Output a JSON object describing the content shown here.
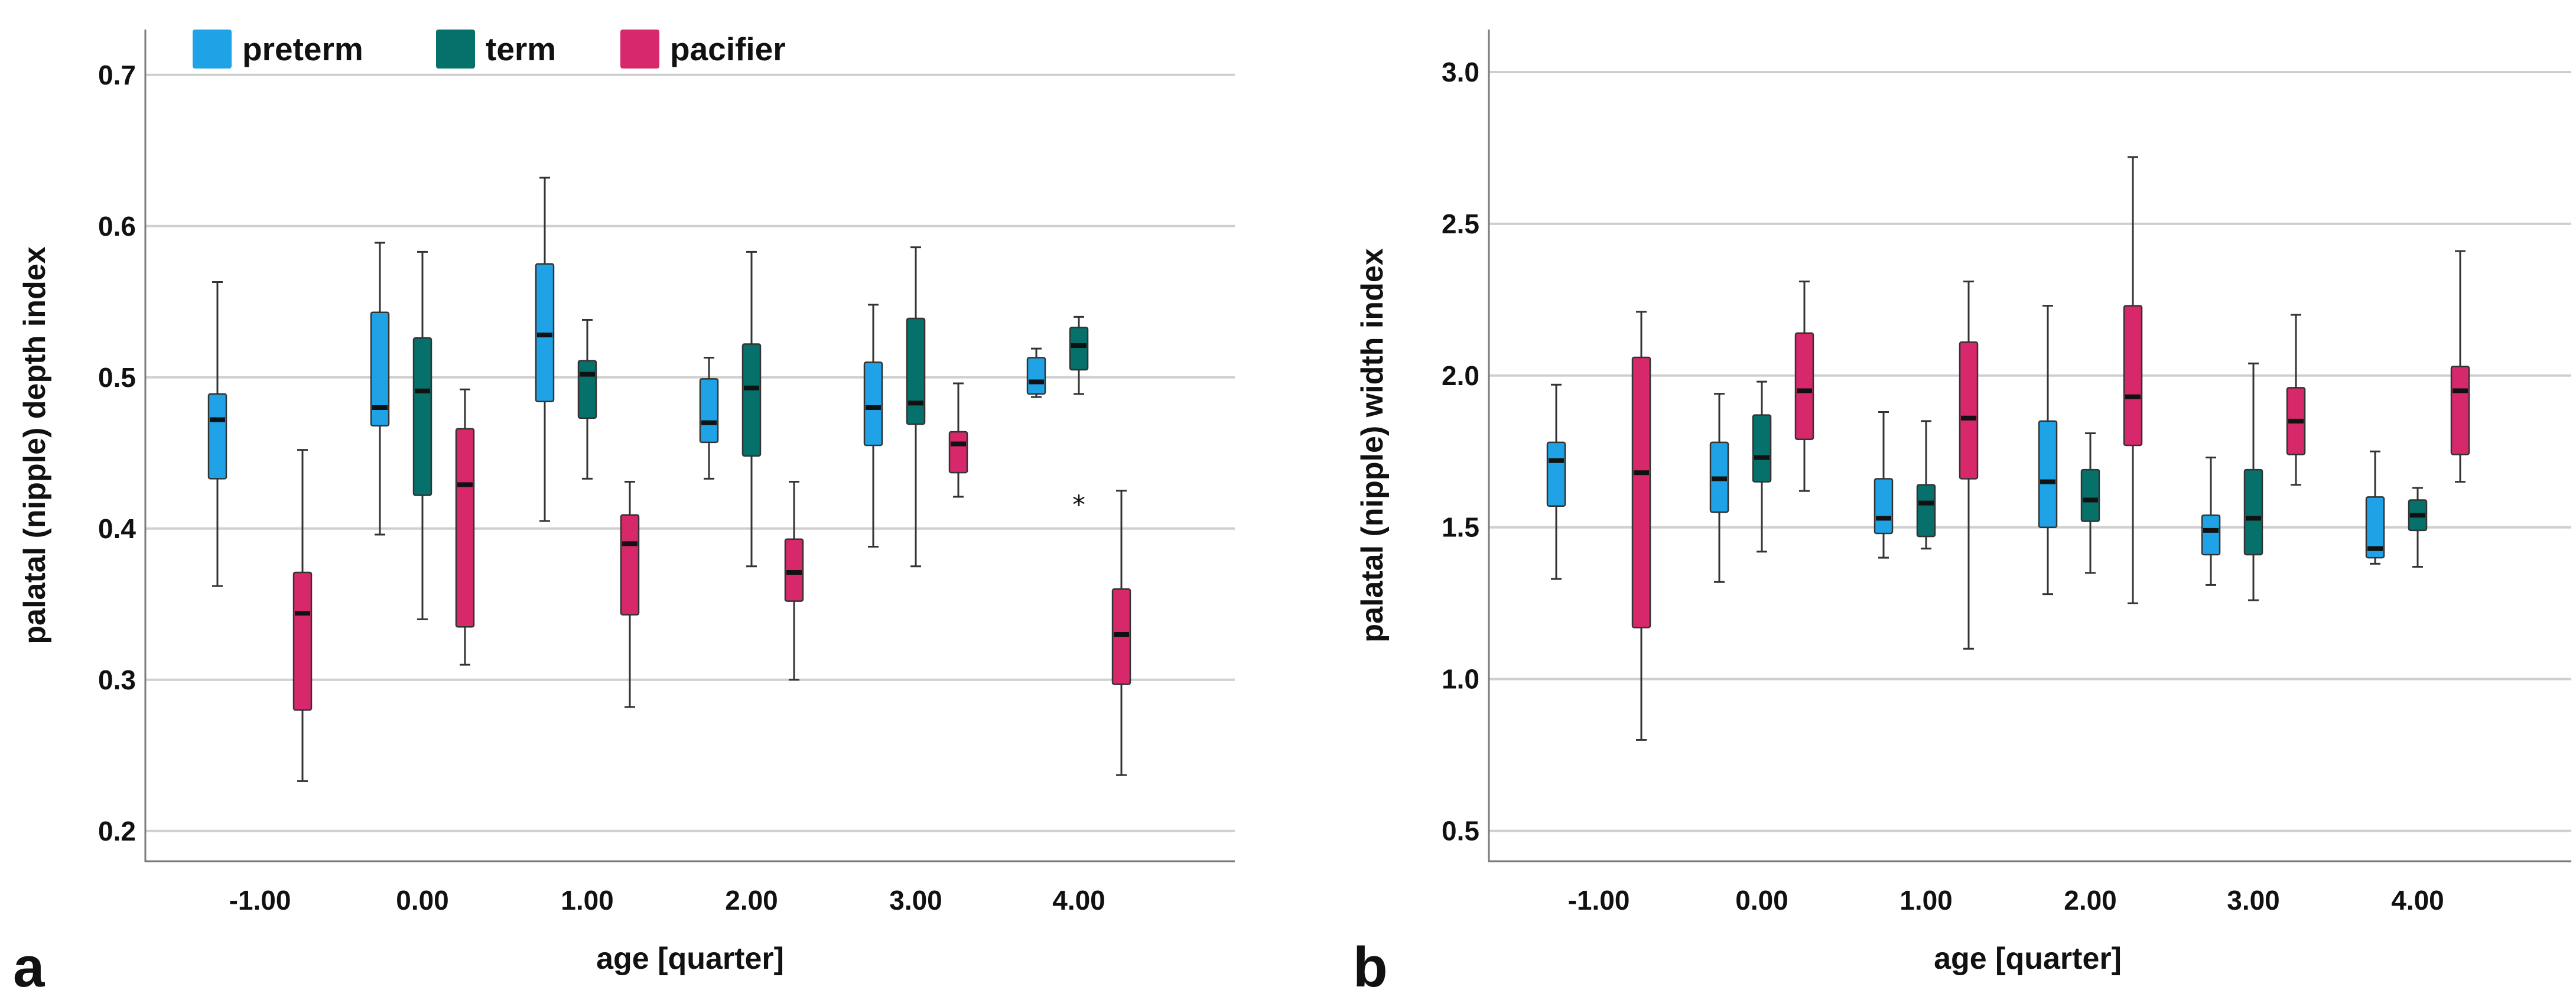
{
  "legend": [
    {
      "key": "preterm",
      "label": "preterm",
      "color": "#1FA3E6"
    },
    {
      "key": "term",
      "label": "term",
      "color": "#06706A"
    },
    {
      "key": "pacifier",
      "label": "pacifier",
      "color": "#D6286A"
    }
  ],
  "chart_data": [
    {
      "type": "box",
      "panel_label": "a",
      "xlabel": "age [quarter]",
      "ylabel": "palatal (nipple) depth index",
      "ylim": [
        0.18,
        0.73
      ],
      "yticks": [
        0.2,
        0.3,
        0.4,
        0.5,
        0.6,
        0.7
      ],
      "ytick_labels": [
        "0.2",
        "0.3",
        "0.4",
        "0.5",
        "0.6",
        "0.7"
      ],
      "categories": [
        "-1.00",
        "0.00",
        "1.00",
        "2.00",
        "3.00",
        "4.00"
      ],
      "series": [
        {
          "name": "preterm",
          "boxes": [
            {
              "min": 0.362,
              "q1": 0.433,
              "median": 0.472,
              "q3": 0.489,
              "max": 0.563
            },
            {
              "min": 0.396,
              "q1": 0.468,
              "median": 0.48,
              "q3": 0.543,
              "max": 0.589
            },
            {
              "min": 0.405,
              "q1": 0.484,
              "median": 0.528,
              "q3": 0.575,
              "max": 0.632
            },
            {
              "min": 0.433,
              "q1": 0.457,
              "median": 0.47,
              "q3": 0.499,
              "max": 0.513
            },
            {
              "min": 0.388,
              "q1": 0.455,
              "median": 0.48,
              "q3": 0.51,
              "max": 0.548
            },
            {
              "min": 0.487,
              "q1": 0.489,
              "median": 0.497,
              "q3": 0.513,
              "max": 0.519
            }
          ]
        },
        {
          "name": "term",
          "boxes": [
            null,
            {
              "min": 0.34,
              "q1": 0.422,
              "median": 0.491,
              "q3": 0.526,
              "max": 0.583
            },
            {
              "min": 0.433,
              "q1": 0.473,
              "median": 0.502,
              "q3": 0.511,
              "max": 0.538
            },
            {
              "min": 0.375,
              "q1": 0.448,
              "median": 0.493,
              "q3": 0.522,
              "max": 0.583
            },
            {
              "min": 0.375,
              "q1": 0.469,
              "median": 0.483,
              "q3": 0.539,
              "max": 0.586
            },
            {
              "min": 0.489,
              "q1": 0.505,
              "median": 0.521,
              "q3": 0.533,
              "max": 0.54,
              "outliers": [
                0.417
              ]
            }
          ]
        },
        {
          "name": "pacifier",
          "boxes": [
            {
              "min": 0.233,
              "q1": 0.28,
              "median": 0.344,
              "q3": 0.371,
              "max": 0.452
            },
            {
              "min": 0.31,
              "q1": 0.335,
              "median": 0.429,
              "q3": 0.466,
              "max": 0.492
            },
            {
              "min": 0.282,
              "q1": 0.343,
              "median": 0.39,
              "q3": 0.409,
              "max": 0.431
            },
            {
              "min": 0.3,
              "q1": 0.352,
              "median": 0.371,
              "q3": 0.393,
              "max": 0.431
            },
            {
              "min": 0.421,
              "q1": 0.437,
              "median": 0.456,
              "q3": 0.464,
              "max": 0.496
            },
            {
              "min": 0.237,
              "q1": 0.297,
              "median": 0.33,
              "q3": 0.36,
              "max": 0.425
            }
          ]
        }
      ]
    },
    {
      "type": "box",
      "panel_label": "b",
      "xlabel": "age [quarter]",
      "ylabel": "palatal (nipple) width index",
      "ylim": [
        0.4,
        3.14
      ],
      "yticks": [
        0.5,
        1.0,
        1.5,
        2.0,
        2.5,
        3.0
      ],
      "ytick_labels": [
        "0.5",
        "1.0",
        "1.5",
        "2.0",
        "2.5",
        "3.0"
      ],
      "categories": [
        "-1.00",
        "0.00",
        "1.00",
        "2.00",
        "3.00",
        "4.00"
      ],
      "series": [
        {
          "name": "preterm",
          "boxes": [
            {
              "min": 1.33,
              "q1": 1.57,
              "median": 1.72,
              "q3": 1.78,
              "max": 1.97
            },
            {
              "min": 1.32,
              "q1": 1.55,
              "median": 1.66,
              "q3": 1.78,
              "max": 1.94
            },
            {
              "min": 1.4,
              "q1": 1.48,
              "median": 1.53,
              "q3": 1.66,
              "max": 1.88
            },
            {
              "min": 1.28,
              "q1": 1.5,
              "median": 1.65,
              "q3": 1.85,
              "max": 2.23
            },
            {
              "min": 1.31,
              "q1": 1.41,
              "median": 1.49,
              "q3": 1.54,
              "max": 1.73
            },
            {
              "min": 1.38,
              "q1": 1.4,
              "median": 1.43,
              "q3": 1.6,
              "max": 1.75
            }
          ]
        },
        {
          "name": "term",
          "boxes": [
            null,
            {
              "min": 1.42,
              "q1": 1.65,
              "median": 1.73,
              "q3": 1.87,
              "max": 1.98
            },
            {
              "min": 1.43,
              "q1": 1.47,
              "median": 1.58,
              "q3": 1.64,
              "max": 1.85
            },
            {
              "min": 1.35,
              "q1": 1.52,
              "median": 1.59,
              "q3": 1.69,
              "max": 1.81
            },
            {
              "min": 1.26,
              "q1": 1.41,
              "median": 1.53,
              "q3": 1.69,
              "max": 2.04
            },
            {
              "min": 1.37,
              "q1": 1.49,
              "median": 1.54,
              "q3": 1.59,
              "max": 1.63
            }
          ]
        },
        {
          "name": "pacifier",
          "boxes": [
            {
              "min": 0.8,
              "q1": 1.17,
              "median": 1.68,
              "q3": 2.06,
              "max": 2.21
            },
            {
              "min": 1.62,
              "q1": 1.79,
              "median": 1.95,
              "q3": 2.14,
              "max": 2.31
            },
            {
              "min": 1.1,
              "q1": 1.66,
              "median": 1.86,
              "q3": 2.11,
              "max": 2.31
            },
            {
              "min": 1.25,
              "q1": 1.77,
              "median": 1.93,
              "q3": 2.23,
              "max": 2.72
            },
            {
              "min": 1.64,
              "q1": 1.74,
              "median": 1.85,
              "q3": 1.96,
              "max": 2.2
            },
            {
              "min": 1.65,
              "q1": 1.74,
              "median": 1.95,
              "q3": 2.03,
              "max": 2.41
            }
          ]
        }
      ]
    }
  ]
}
